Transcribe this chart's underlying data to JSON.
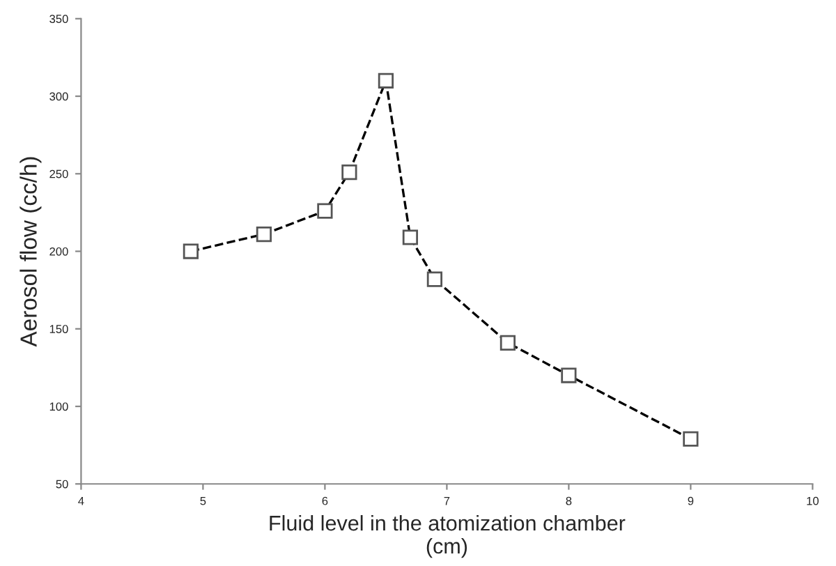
{
  "chart_data": {
    "type": "line",
    "xlabel": "Fluid level in the atomization chamber\n(cm)",
    "ylabel": "Aerosol flow (cc/h)",
    "x": [
      4.9,
      5.5,
      6.0,
      6.2,
      6.5,
      6.7,
      6.9,
      7.5,
      8.0,
      9.0
    ],
    "series": [
      {
        "color": "#000000",
        "values": [
          200,
          211,
          226,
          251,
          310,
          209,
          182,
          141,
          120,
          79
        ]
      }
    ],
    "xlim": [
      4,
      10
    ],
    "xticks": [
      4,
      5,
      6,
      7,
      8,
      9,
      10
    ],
    "ylim": [
      50,
      350
    ],
    "yticks": [
      50,
      100,
      150,
      200,
      250,
      300,
      350
    ],
    "marker": "square",
    "line_style": "dashed",
    "grid": false
  }
}
